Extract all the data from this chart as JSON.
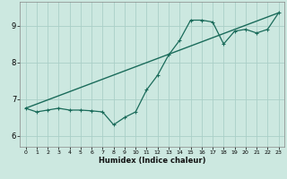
{
  "xlabel": "Humidex (Indice chaleur)",
  "bg_color": "#cce8e0",
  "grid_color": "#aacfc8",
  "line_color": "#1a6b5a",
  "xlim": [
    -0.5,
    23.5
  ],
  "ylim": [
    5.7,
    9.65
  ],
  "yticks": [
    6,
    7,
    8,
    9
  ],
  "xticks": [
    0,
    1,
    2,
    3,
    4,
    5,
    6,
    7,
    8,
    9,
    10,
    11,
    12,
    13,
    14,
    15,
    16,
    17,
    18,
    19,
    20,
    21,
    22,
    23
  ],
  "zigzag_x": [
    0,
    1,
    2,
    3,
    4,
    5,
    6,
    7,
    8,
    9,
    10,
    11,
    12,
    13,
    14,
    15,
    16,
    17,
    18,
    19,
    20,
    21,
    22,
    23
  ],
  "zigzag_y": [
    6.75,
    6.65,
    6.7,
    6.75,
    6.7,
    6.7,
    6.68,
    6.65,
    6.3,
    6.5,
    6.65,
    7.25,
    7.65,
    8.2,
    8.6,
    9.15,
    9.15,
    9.1,
    8.5,
    8.85,
    8.9,
    8.8,
    8.9,
    9.35
  ],
  "trend_x": [
    0,
    23
  ],
  "trend_y": [
    6.75,
    9.35
  ]
}
